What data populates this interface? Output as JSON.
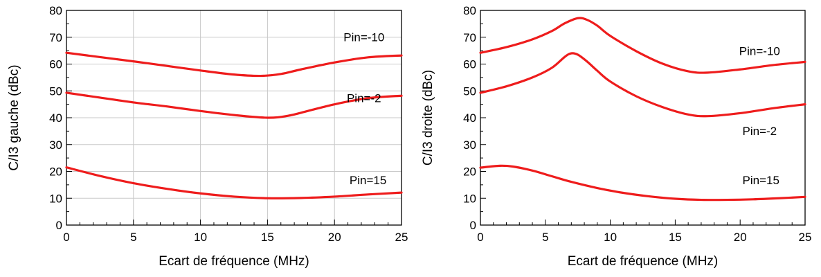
{
  "line_color": "#ee1c1c",
  "chart_data": [
    {
      "type": "line",
      "xlabel": "Ecart de fréquence (MHz)",
      "ylabel": "C/I3 gauche (dBc)",
      "xlim": [
        0,
        25
      ],
      "ylim": [
        0,
        80
      ],
      "xticks": [
        "0",
        "5",
        "10",
        "15",
        "20",
        "25"
      ],
      "yticks": [
        "0",
        "10",
        "20",
        "30",
        "40",
        "50",
        "60",
        "70",
        "80"
      ],
      "grid": true,
      "series": [
        {
          "name": "Pin=-10",
          "x": [
            0,
            2.5,
            5,
            7.5,
            10,
            12.5,
            14.5,
            16,
            17.5,
            20,
            22.5,
            25
          ],
          "y": [
            64.2,
            62.6,
            61,
            59.3,
            57.6,
            56.1,
            55.6,
            56.3,
            58,
            60.6,
            62.5,
            63.2
          ]
        },
        {
          "name": "Pin=-2",
          "x": [
            0,
            2.5,
            5,
            7.5,
            10,
            12.5,
            15,
            16.5,
            18,
            20,
            22.5,
            25
          ],
          "y": [
            49.3,
            47.5,
            45.7,
            44.2,
            42.5,
            41,
            40,
            40.7,
            42.5,
            45,
            47.3,
            48.2
          ]
        },
        {
          "name": "Pin=15",
          "x": [
            0,
            2.5,
            5,
            7.5,
            10,
            12.5,
            15,
            17.5,
            20,
            22.5,
            25
          ],
          "y": [
            21.5,
            18.3,
            15.6,
            13.5,
            11.8,
            10.6,
            10,
            10.1,
            10.6,
            11.4,
            12.1
          ]
        }
      ]
    },
    {
      "type": "line",
      "xlabel": "Ecart de fréquence (MHz)",
      "ylabel": "C/I3 droite (dBc)",
      "xlim": [
        0,
        25
      ],
      "ylim": [
        0,
        80
      ],
      "xticks": [
        "0",
        "5",
        "10",
        "15",
        "20",
        "25"
      ],
      "yticks": [
        "0",
        "10",
        "20",
        "30",
        "40",
        "50",
        "60",
        "70",
        "80"
      ],
      "grid": false,
      "series": [
        {
          "name": "Pin=-10",
          "x": [
            0,
            2,
            4,
            5.5,
            6.5,
            7.5,
            8.2,
            9,
            10,
            12,
            14,
            16,
            17.5,
            20,
            22.5,
            25
          ],
          "y": [
            64.2,
            66.3,
            69.2,
            72.3,
            75.2,
            77.1,
            76.5,
            74.3,
            70.5,
            64.8,
            60.2,
            57.3,
            56.8,
            58,
            59.6,
            60.8
          ]
        },
        {
          "name": "Pin=-2",
          "x": [
            0,
            2,
            4,
            5.5,
            6.5,
            7,
            7.5,
            8.2,
            9,
            10,
            12,
            14,
            16,
            17.5,
            20,
            22.5,
            25
          ],
          "y": [
            49.3,
            51.7,
            55,
            58.6,
            62.7,
            64,
            63.5,
            61,
            57.5,
            53.5,
            48,
            44,
            41.2,
            40.6,
            41.7,
            43.5,
            45
          ]
        },
        {
          "name": "Pin=15",
          "x": [
            0,
            1.5,
            2.5,
            4,
            5.5,
            7,
            9,
            11,
            13,
            15,
            17,
            19,
            21,
            23,
            25
          ],
          "y": [
            21.4,
            22.1,
            21.8,
            20.3,
            18.2,
            16.1,
            13.8,
            12,
            10.7,
            9.8,
            9.4,
            9.4,
            9.6,
            10,
            10.5
          ]
        }
      ]
    }
  ]
}
